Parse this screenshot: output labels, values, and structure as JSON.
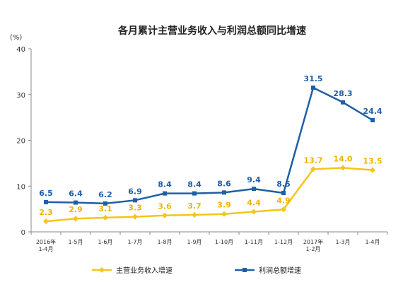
{
  "chart_data": {
    "type": "line",
    "title": "各月累计主营业务收入与利润总额同比增速",
    "unit_label": "(%)",
    "categories": [
      [
        "2016年",
        "1-4月"
      ],
      [
        "1-5月"
      ],
      [
        "1-6月"
      ],
      [
        "1-7月"
      ],
      [
        "1-8月"
      ],
      [
        "1-9月"
      ],
      [
        "1-10月"
      ],
      [
        "1-11月"
      ],
      [
        "1-12月"
      ],
      [
        "2017年",
        "1-2月"
      ],
      [
        "1-3月"
      ],
      [
        "1-4月"
      ]
    ],
    "ylim": [
      0,
      40
    ],
    "yticks": [
      0,
      10,
      20,
      30,
      40
    ],
    "grid": false,
    "legend_position": "bottom",
    "series": [
      {
        "name": "主营业务收入增速",
        "color": "#f5c518",
        "label_color": "#f0b400",
        "marker": "diamond",
        "values": [
          2.3,
          2.9,
          3.1,
          3.3,
          3.6,
          3.7,
          3.9,
          4.4,
          4.9,
          13.7,
          14.0,
          13.5
        ],
        "labels": [
          "2.3",
          "2.9",
          "3.1",
          "3.3",
          "3.6",
          "3.7",
          "3.9",
          "4.4",
          "4.9",
          "13.7",
          "14.0",
          "13.5"
        ]
      },
      {
        "name": "利润总额增速",
        "color": "#1f5fa6",
        "label_color": "#1f5fa6",
        "marker": "square",
        "values": [
          6.5,
          6.4,
          6.2,
          6.9,
          8.4,
          8.4,
          8.6,
          9.4,
          8.5,
          31.5,
          28.3,
          24.4
        ],
        "labels": [
          "6.5",
          "6.4",
          "6.2",
          "6.9",
          "8.4",
          "8.4",
          "8.6",
          "9.4",
          "8.5",
          "31.5",
          "28.3",
          "24.4"
        ]
      }
    ]
  }
}
